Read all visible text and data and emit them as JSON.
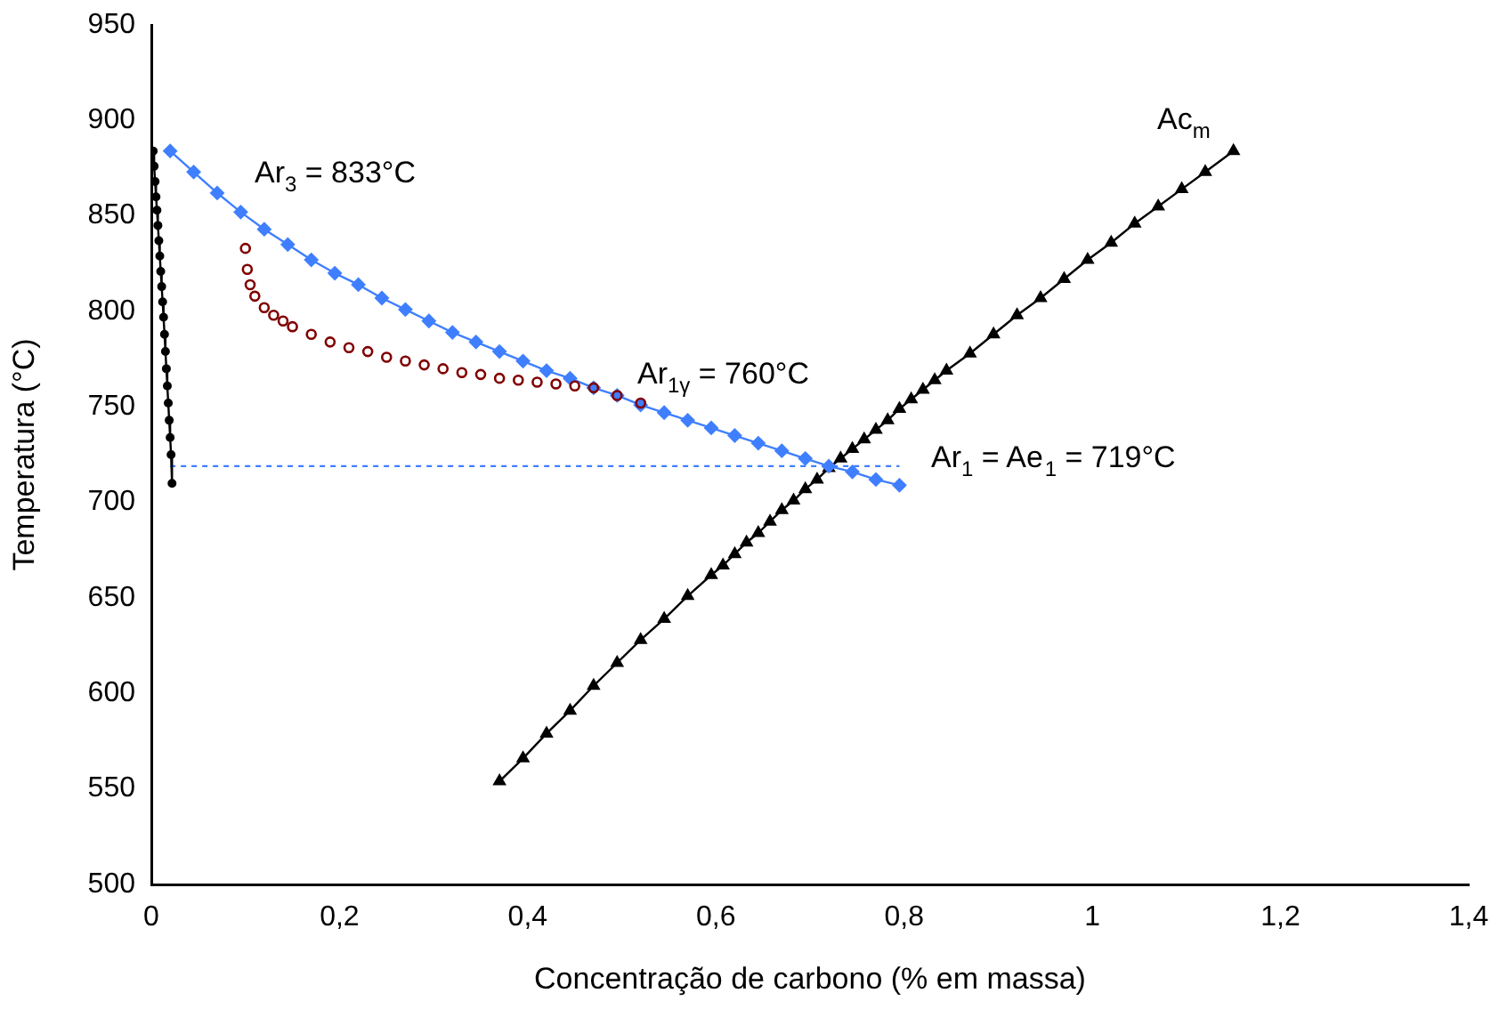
{
  "chart_data": {
    "type": "line",
    "xlabel": "Concentração de carbono (% em massa)",
    "ylabel": "Temperatura (°C)",
    "xlim": [
      0,
      1.4
    ],
    "xticks": [
      0,
      {
        "value": 0.2,
        "label": "0,2"
      },
      {
        "value": 0.4,
        "label": "0,4"
      },
      {
        "value": 0.6,
        "label": "0,6"
      },
      {
        "value": 0.8,
        "label": "0,8"
      },
      1,
      {
        "value": 1.2,
        "label": "1,2"
      },
      {
        "value": 1.4,
        "label": "1,4"
      }
    ],
    "ylim": [
      500,
      950
    ],
    "yticks": [
      500,
      550,
      600,
      650,
      700,
      750,
      800,
      850,
      900,
      950
    ],
    "grid": false,
    "legend": false,
    "series": [
      {
        "type": "line",
        "color": "#3f7fff",
        "marker": "diamond",
        "line_style": "solid",
        "x": [
          0.02,
          0.045,
          0.07,
          0.095,
          0.12,
          0.145,
          0.17,
          0.195,
          0.22,
          0.245,
          0.27,
          0.295,
          0.32,
          0.345,
          0.37,
          0.395,
          0.42,
          0.445,
          0.47,
          0.495,
          0.52,
          0.545,
          0.57,
          0.595,
          0.62,
          0.645,
          0.67,
          0.695,
          0.72,
          0.745,
          0.77,
          0.795
        ],
        "values": [
          884,
          873,
          862,
          852,
          843,
          835,
          827,
          820,
          814,
          807,
          801,
          795,
          789,
          784,
          779,
          774,
          769,
          765,
          760,
          756,
          751,
          747,
          743,
          739,
          735,
          731,
          727,
          723,
          719,
          716,
          712,
          709
        ]
      },
      {
        "type": "scatter",
        "color": "#800000",
        "marker": "circle",
        "x": [
          0.1,
          0.102,
          0.105,
          0.11,
          0.12,
          0.13,
          0.14,
          0.15,
          0.17,
          0.19,
          0.21,
          0.23,
          0.25,
          0.27,
          0.29,
          0.31,
          0.33,
          0.35,
          0.37,
          0.39,
          0.41,
          0.43,
          0.45,
          0.47,
          0.495,
          0.52
        ],
        "values": [
          833,
          822,
          814,
          808,
          802,
          798,
          795,
          792,
          788,
          784,
          781,
          779,
          776,
          774,
          772,
          770,
          768,
          767,
          765,
          764,
          763,
          762,
          761,
          760,
          756,
          752
        ]
      },
      {
        "type": "line",
        "color": "#000000",
        "marker": "circle",
        "line_style": "solid",
        "x": [
          0.002,
          0.003,
          0.004,
          0.005,
          0.006,
          0.007,
          0.008,
          0.009,
          0.01,
          0.011,
          0.012,
          0.013,
          0.014,
          0.015,
          0.016,
          0.017,
          0.018,
          0.019,
          0.02,
          0.021,
          0.022
        ],
        "values": [
          884,
          876,
          868,
          860,
          853,
          845,
          837,
          829,
          821,
          813,
          805,
          797,
          788,
          779,
          770,
          761,
          752,
          743,
          734,
          725,
          710
        ]
      },
      {
        "type": "line",
        "color": "#000000",
        "marker": "triangle",
        "line_style": "solid",
        "x": [
          0.37,
          0.395,
          0.42,
          0.445,
          0.47,
          0.495,
          0.52,
          0.545,
          0.57,
          0.595,
          0.6075,
          0.62,
          0.6325,
          0.645,
          0.6575,
          0.67,
          0.6825,
          0.695,
          0.7075,
          0.72,
          0.7325,
          0.745,
          0.7575,
          0.77,
          0.7825,
          0.795,
          0.8075,
          0.82,
          0.8325,
          0.845,
          0.87,
          0.895,
          0.92,
          0.945,
          0.97,
          0.995,
          1.02,
          1.045,
          1.07,
          1.095,
          1.12,
          1.15
        ],
        "values": [
          554,
          566,
          579,
          591,
          604,
          616,
          628,
          639,
          651,
          662,
          667,
          673,
          679,
          684,
          690,
          696,
          701,
          707,
          712,
          718,
          723,
          728,
          733,
          738,
          743,
          749,
          754,
          759,
          764,
          769,
          778,
          788,
          798,
          807,
          817,
          827,
          836,
          846,
          855,
          864,
          873,
          884
        ]
      },
      {
        "type": "line",
        "color": "#3f7fff",
        "marker": "none",
        "line_style": "dotted",
        "x": [
          0.02,
          0.795
        ],
        "values": [
          719,
          719
        ]
      }
    ],
    "annotations": [
      "Ar$_{3}$ = 833°C",
      "Ar$_{1γ}$ = 760°C",
      "Ar$_{1}$ = Ae$_{1}$ = 719°C",
      "Ac$_{m}$"
    ]
  }
}
